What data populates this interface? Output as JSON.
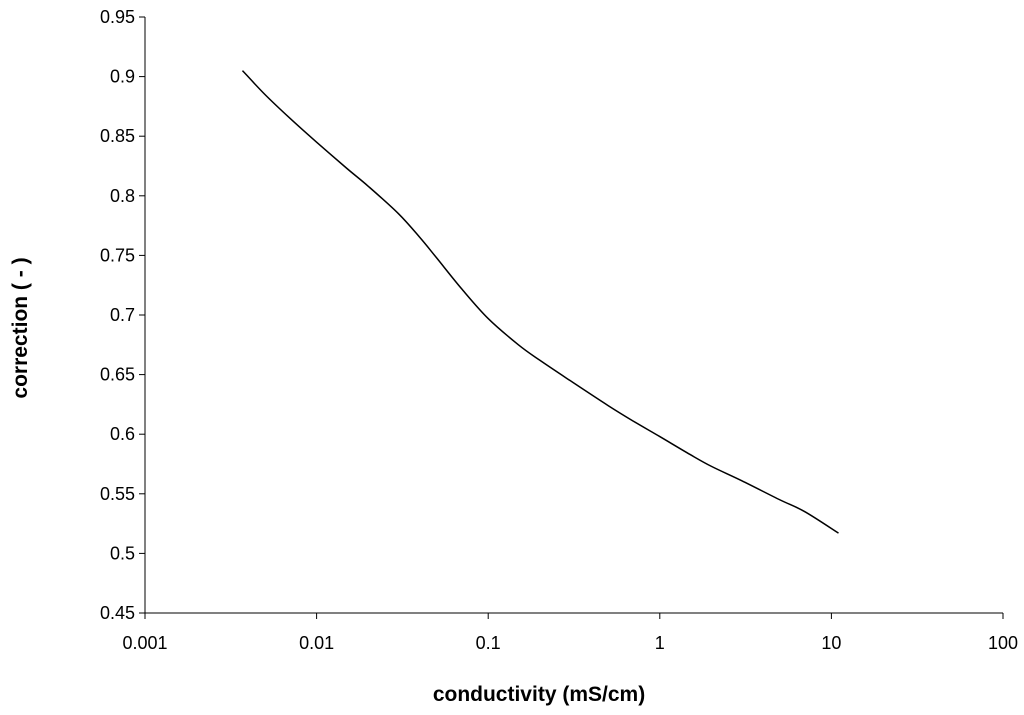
{
  "chart_data": {
    "type": "line",
    "title": "",
    "xlabel": "conductivity (mS/cm)",
    "ylabel": "correction ( - )",
    "x_scale": "log",
    "xlim": [
      0.001,
      100
    ],
    "ylim": [
      0.45,
      0.95
    ],
    "x_ticks": [
      0.001,
      0.01,
      0.1,
      1,
      10,
      100
    ],
    "x_tick_labels": [
      "0.001",
      "0.01",
      "0.1",
      "1",
      "10",
      "100"
    ],
    "y_ticks": [
      0.45,
      0.5,
      0.55,
      0.6,
      0.65,
      0.7,
      0.75,
      0.8,
      0.85,
      0.9,
      0.95
    ],
    "y_tick_labels": [
      "0.45",
      "0.5",
      "0.55",
      "0.6",
      "0.65",
      "0.7",
      "0.75",
      "0.8",
      "0.85",
      "0.9",
      "0.95"
    ],
    "grid": false,
    "legend": "none",
    "line_color": "#000000",
    "series": [
      {
        "x": [
          0.0037,
          0.005,
          0.007,
          0.01,
          0.015,
          0.02,
          0.03,
          0.04,
          0.05,
          0.07,
          0.1,
          0.15,
          0.2,
          0.3,
          0.5,
          0.7,
          1,
          1.5,
          2,
          3,
          5,
          7,
          11
        ],
        "y": [
          0.905,
          0.885,
          0.865,
          0.845,
          0.823,
          0.808,
          0.785,
          0.765,
          0.748,
          0.722,
          0.697,
          0.675,
          0.662,
          0.645,
          0.624,
          0.611,
          0.598,
          0.583,
          0.573,
          0.561,
          0.545,
          0.535,
          0.517
        ]
      }
    ]
  }
}
